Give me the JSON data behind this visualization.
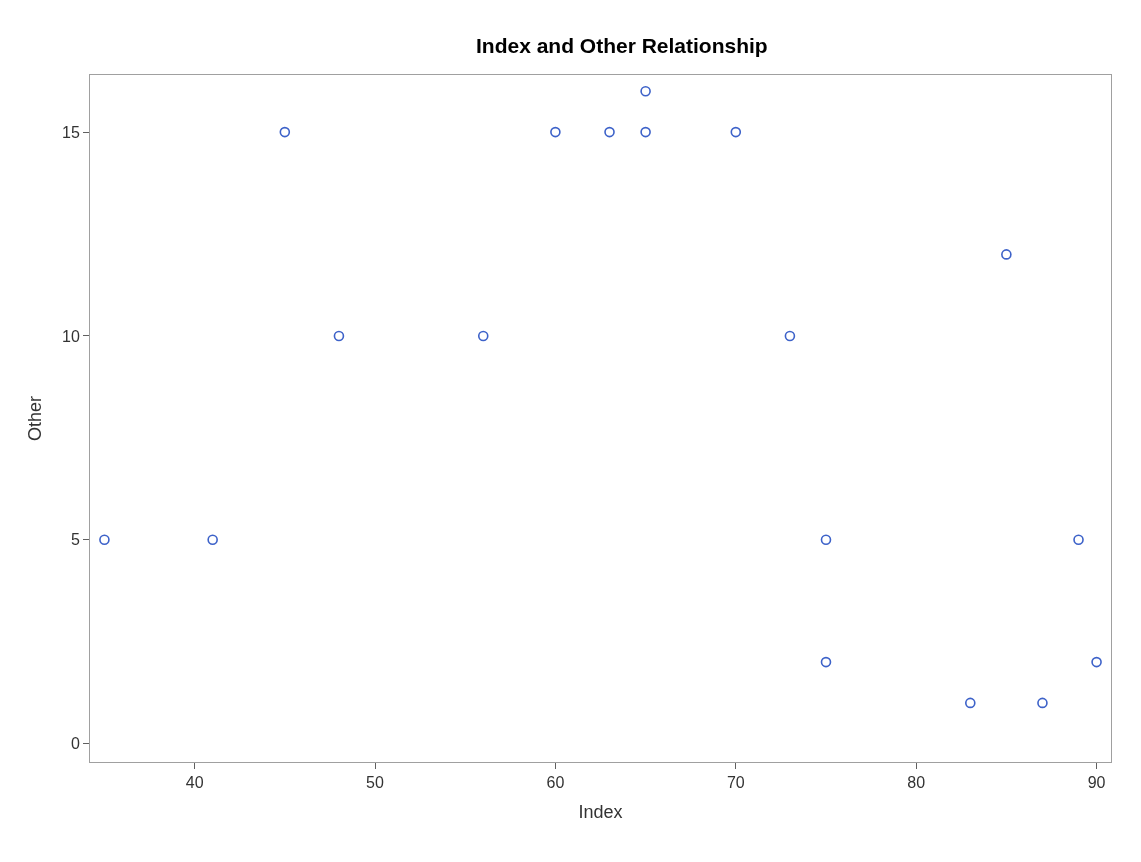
{
  "chart_data": {
    "type": "scatter",
    "title": "Index and Other Relationship",
    "xlabel": "Index",
    "ylabel": "Other",
    "x": [
      35,
      41,
      45,
      48,
      56,
      60,
      63,
      65,
      65,
      70,
      73,
      75,
      75,
      83,
      85,
      87,
      89,
      90
    ],
    "series": [
      {
        "color": "#3d62c9",
        "values": [
          5,
          5,
          15,
          10,
          10,
          15,
          15,
          15,
          16,
          15,
          10,
          5,
          2,
          1,
          12,
          1,
          5,
          2
        ]
      }
    ],
    "xlim": [
      34.2,
      90.8
    ],
    "xticks": [
      40,
      50,
      60,
      70,
      80,
      90
    ],
    "ylim": [
      -0.45,
      16.4
    ],
    "yticks": [
      0,
      5,
      10,
      15
    ],
    "marker": "circle"
  }
}
